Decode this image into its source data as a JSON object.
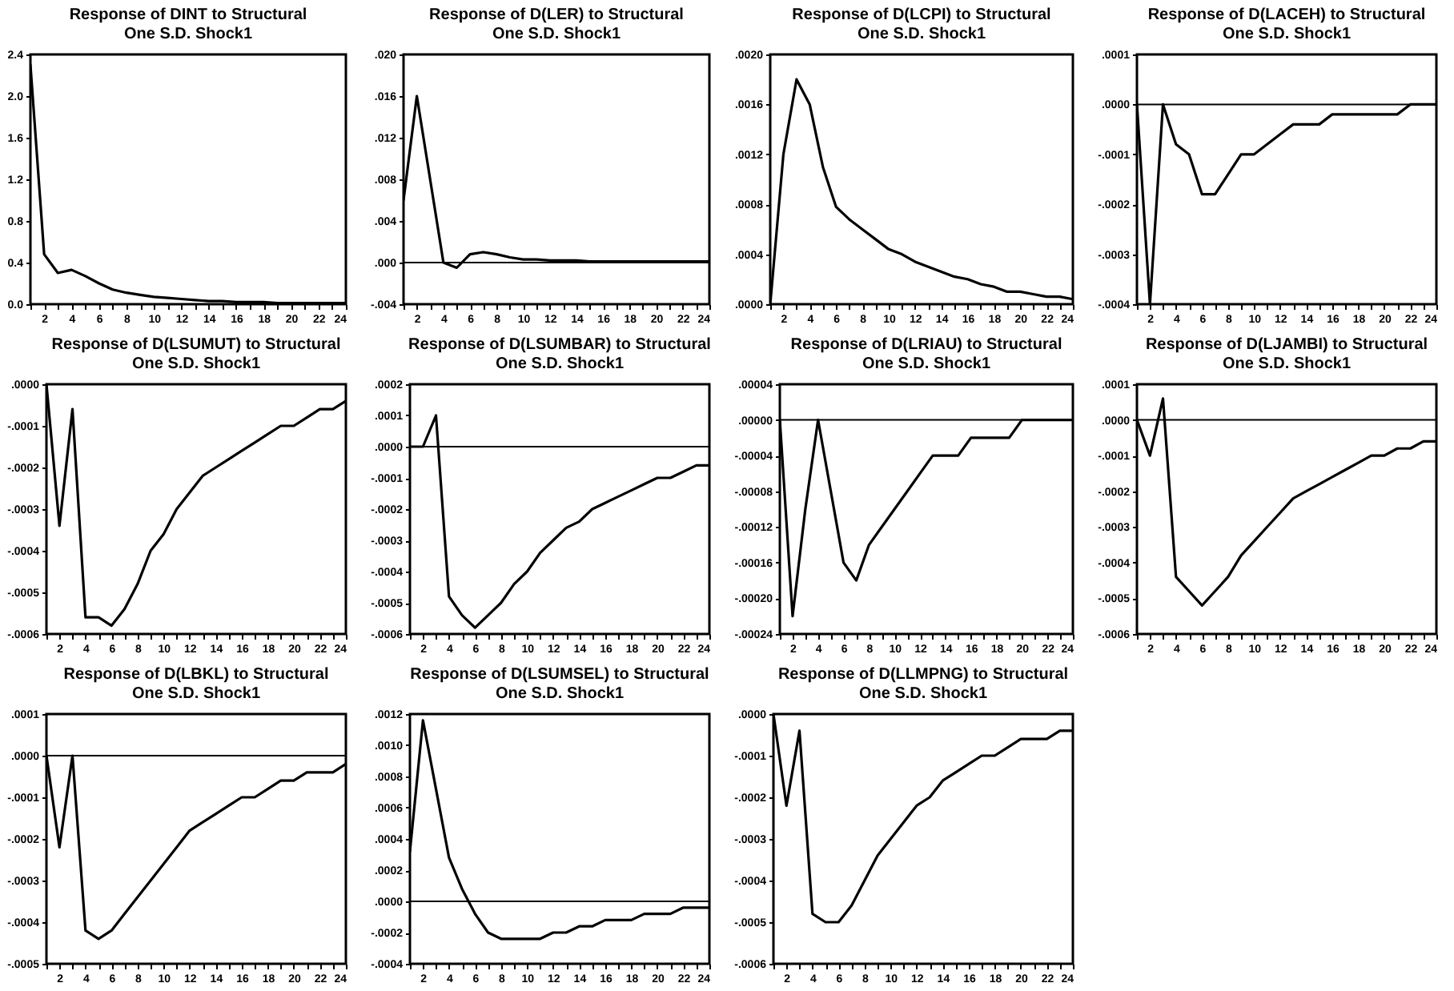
{
  "chart_data": [
    {
      "type": "line",
      "title": "Response of DINT to Structural\nOne S.D. Shock1",
      "color": "#000000",
      "x": [
        1,
        2,
        3,
        4,
        5,
        6,
        7,
        8,
        9,
        10,
        11,
        12,
        13,
        14,
        15,
        16,
        17,
        18,
        19,
        20,
        21,
        22,
        23,
        24
      ],
      "values": [
        2.3,
        0.48,
        0.3,
        0.33,
        0.27,
        0.2,
        0.14,
        0.11,
        0.09,
        0.07,
        0.06,
        0.05,
        0.04,
        0.03,
        0.03,
        0.02,
        0.02,
        0.02,
        0.01,
        0.01,
        0.01,
        0.01,
        0.01,
        0.01
      ],
      "xlim": [
        1,
        24
      ],
      "xticks": [
        {
          "value": 1,
          "label": null
        },
        2,
        {
          "value": 3,
          "label": null
        },
        4,
        {
          "value": 5,
          "label": null
        },
        6,
        {
          "value": 7,
          "label": null
        },
        8,
        {
          "value": 9,
          "label": null
        },
        10,
        {
          "value": 11,
          "label": null
        },
        12,
        {
          "value": 13,
          "label": null
        },
        14,
        {
          "value": 15,
          "label": null
        },
        16,
        {
          "value": 17,
          "label": null
        },
        18,
        {
          "value": 19,
          "label": null
        },
        20,
        {
          "value": 21,
          "label": null
        },
        22,
        {
          "value": 23,
          "label": null
        },
        24
      ],
      "ylim": [
        0,
        2.4
      ],
      "yticks": [
        {
          "value": 0,
          "label": "0.0"
        },
        {
          "value": 0.4,
          "label": "0.4"
        },
        {
          "value": 0.8,
          "label": "0.8"
        },
        {
          "value": 1.2,
          "label": "1.2"
        },
        {
          "value": 1.6,
          "label": "1.6"
        },
        {
          "value": 2.0,
          "label": "2.0"
        },
        {
          "value": 2.4,
          "label": "2.4"
        }
      ]
    },
    {
      "type": "line",
      "title": "Response of D(LER) to Structural\nOne S.D. Shock1",
      "color": "#000000",
      "x": [
        1,
        2,
        3,
        4,
        5,
        6,
        7,
        8,
        9,
        10,
        11,
        12,
        13,
        14,
        15,
        16,
        17,
        18,
        19,
        20,
        21,
        22,
        23,
        24
      ],
      "values": [
        0.006,
        0.016,
        0.008,
        0.0,
        -0.0005,
        0.0008,
        0.001,
        0.0008,
        0.0005,
        0.0003,
        0.0003,
        0.0002,
        0.0002,
        0.0002,
        0.0001,
        0.0001,
        0.0001,
        0.0001,
        0.0001,
        0.0001,
        0.0001,
        0.0001,
        0.0001,
        0.0001
      ],
      "xlim": [
        1,
        24
      ],
      "xticks": [
        {
          "value": 1,
          "label": null
        },
        2,
        {
          "value": 3,
          "label": null
        },
        4,
        {
          "value": 5,
          "label": null
        },
        6,
        {
          "value": 7,
          "label": null
        },
        8,
        {
          "value": 9,
          "label": null
        },
        10,
        {
          "value": 11,
          "label": null
        },
        12,
        {
          "value": 13,
          "label": null
        },
        14,
        {
          "value": 15,
          "label": null
        },
        16,
        {
          "value": 17,
          "label": null
        },
        18,
        {
          "value": 19,
          "label": null
        },
        20,
        {
          "value": 21,
          "label": null
        },
        22,
        {
          "value": 23,
          "label": null
        },
        24
      ],
      "ylim": [
        -0.004,
        0.02
      ],
      "yticks": [
        {
          "value": -0.004,
          "label": "-.004"
        },
        {
          "value": 0,
          "label": ".000"
        },
        {
          "value": 0.004,
          "label": ".004"
        },
        {
          "value": 0.008,
          "label": ".008"
        },
        {
          "value": 0.012,
          "label": ".012"
        },
        {
          "value": 0.016,
          "label": ".016"
        },
        {
          "value": 0.02,
          "label": ".020"
        }
      ],
      "ref_lines": [
        {
          "axis": "y",
          "value": 0
        }
      ]
    },
    {
      "type": "line",
      "title": "Response of D(LCPI) to Structural\nOne S.D. Shock1",
      "color": "#000000",
      "x": [
        1,
        2,
        3,
        4,
        5,
        6,
        7,
        8,
        9,
        10,
        11,
        12,
        13,
        14,
        15,
        16,
        17,
        18,
        19,
        20,
        21,
        22,
        23,
        24
      ],
      "values": [
        0.0,
        0.0012,
        0.0018,
        0.0016,
        0.0011,
        0.00078,
        0.00068,
        0.0006,
        0.00052,
        0.00044,
        0.0004,
        0.00034,
        0.0003,
        0.00026,
        0.00022,
        0.0002,
        0.00016,
        0.00014,
        0.0001,
        0.0001,
        8e-05,
        6e-05,
        6e-05,
        4e-05
      ],
      "xlim": [
        1,
        24
      ],
      "xticks": [
        {
          "value": 1,
          "label": null
        },
        2,
        {
          "value": 3,
          "label": null
        },
        4,
        {
          "value": 5,
          "label": null
        },
        6,
        {
          "value": 7,
          "label": null
        },
        8,
        {
          "value": 9,
          "label": null
        },
        10,
        {
          "value": 11,
          "label": null
        },
        12,
        {
          "value": 13,
          "label": null
        },
        14,
        {
          "value": 15,
          "label": null
        },
        16,
        {
          "value": 17,
          "label": null
        },
        18,
        {
          "value": 19,
          "label": null
        },
        20,
        {
          "value": 21,
          "label": null
        },
        22,
        {
          "value": 23,
          "label": null
        },
        24
      ],
      "ylim": [
        0,
        0.002
      ],
      "yticks": [
        {
          "value": 0,
          "label": ".0000"
        },
        {
          "value": 0.0004,
          "label": ".0004"
        },
        {
          "value": 0.0008,
          "label": ".0008"
        },
        {
          "value": 0.0012,
          "label": ".0012"
        },
        {
          "value": 0.0016,
          "label": ".0016"
        },
        {
          "value": 0.002,
          "label": ".0020"
        }
      ]
    },
    {
      "type": "line",
      "title": "Response of D(LACEH) to Structural\nOne S.D. Shock1",
      "color": "#000000",
      "x": [
        1,
        2,
        3,
        4,
        5,
        6,
        7,
        8,
        9,
        10,
        11,
        12,
        13,
        14,
        15,
        16,
        17,
        18,
        19,
        20,
        21,
        22,
        23,
        24
      ],
      "values": [
        0.0,
        -0.0004,
        0.0,
        -8e-05,
        -0.0001,
        -0.00018,
        -0.00018,
        -0.00014,
        -0.0001,
        -0.0001,
        -8e-05,
        -6e-05,
        -4e-05,
        -4e-05,
        -4e-05,
        -2e-05,
        -2e-05,
        -2e-05,
        -2e-05,
        -2e-05,
        -2e-05,
        0.0,
        0.0,
        0.0
      ],
      "xlim": [
        1,
        24
      ],
      "xticks": [
        {
          "value": 1,
          "label": null
        },
        2,
        {
          "value": 3,
          "label": null
        },
        4,
        {
          "value": 5,
          "label": null
        },
        6,
        {
          "value": 7,
          "label": null
        },
        8,
        {
          "value": 9,
          "label": null
        },
        10,
        {
          "value": 11,
          "label": null
        },
        12,
        {
          "value": 13,
          "label": null
        },
        14,
        {
          "value": 15,
          "label": null
        },
        16,
        {
          "value": 17,
          "label": null
        },
        18,
        {
          "value": 19,
          "label": null
        },
        20,
        {
          "value": 21,
          "label": null
        },
        22,
        {
          "value": 23,
          "label": null
        },
        24
      ],
      "ylim": [
        -0.0004,
        0.0001
      ],
      "yticks": [
        {
          "value": -0.0004,
          "label": "-.0004"
        },
        {
          "value": -0.0003,
          "label": "-.0003"
        },
        {
          "value": -0.0002,
          "label": "-.0002"
        },
        {
          "value": -0.0001,
          "label": "-.0001"
        },
        {
          "value": 0,
          "label": ".0000"
        },
        {
          "value": 0.0001,
          "label": ".0001"
        }
      ],
      "ref_lines": [
        {
          "axis": "y",
          "value": 0
        }
      ]
    },
    {
      "type": "line",
      "title": "Response of D(LSUMUT) to Structural\nOne S.D. Shock1",
      "color": "#000000",
      "x": [
        1,
        2,
        3,
        4,
        5,
        6,
        7,
        8,
        9,
        10,
        11,
        12,
        13,
        14,
        15,
        16,
        17,
        18,
        19,
        20,
        21,
        22,
        23,
        24
      ],
      "values": [
        0.0,
        -0.00034,
        -6e-05,
        -0.00056,
        -0.00056,
        -0.00058,
        -0.00054,
        -0.00048,
        -0.0004,
        -0.00036,
        -0.0003,
        -0.00026,
        -0.00022,
        -0.0002,
        -0.00018,
        -0.00016,
        -0.00014,
        -0.00012,
        -0.0001,
        -0.0001,
        -8e-05,
        -6e-05,
        -6e-05,
        -4e-05
      ],
      "xlim": [
        1,
        24
      ],
      "xticks": [
        {
          "value": 1,
          "label": null
        },
        2,
        {
          "value": 3,
          "label": null
        },
        4,
        {
          "value": 5,
          "label": null
        },
        6,
        {
          "value": 7,
          "label": null
        },
        8,
        {
          "value": 9,
          "label": null
        },
        10,
        {
          "value": 11,
          "label": null
        },
        12,
        {
          "value": 13,
          "label": null
        },
        14,
        {
          "value": 15,
          "label": null
        },
        16,
        {
          "value": 17,
          "label": null
        },
        18,
        {
          "value": 19,
          "label": null
        },
        20,
        {
          "value": 21,
          "label": null
        },
        22,
        {
          "value": 23,
          "label": null
        },
        24
      ],
      "ylim": [
        -0.0006,
        0
      ],
      "yticks": [
        {
          "value": -0.0006,
          "label": "-.0006"
        },
        {
          "value": -0.0005,
          "label": "-.0005"
        },
        {
          "value": -0.0004,
          "label": "-.0004"
        },
        {
          "value": -0.0003,
          "label": "-.0003"
        },
        {
          "value": -0.0002,
          "label": "-.0002"
        },
        {
          "value": -0.0001,
          "label": "-.0001"
        },
        {
          "value": 0,
          "label": ".0000"
        }
      ]
    },
    {
      "type": "line",
      "title": "Response of D(LSUMBAR) to Structural\nOne S.D. Shock1",
      "color": "#000000",
      "x": [
        1,
        2,
        3,
        4,
        5,
        6,
        7,
        8,
        9,
        10,
        11,
        12,
        13,
        14,
        15,
        16,
        17,
        18,
        19,
        20,
        21,
        22,
        23,
        24
      ],
      "values": [
        0.0,
        0.0,
        0.0001,
        -0.00048,
        -0.00054,
        -0.00058,
        -0.00054,
        -0.0005,
        -0.00044,
        -0.0004,
        -0.00034,
        -0.0003,
        -0.00026,
        -0.00024,
        -0.0002,
        -0.00018,
        -0.00016,
        -0.00014,
        -0.00012,
        -0.0001,
        -0.0001,
        -8e-05,
        -6e-05,
        -6e-05
      ],
      "xlim": [
        1,
        24
      ],
      "xticks": [
        {
          "value": 1,
          "label": null
        },
        2,
        {
          "value": 3,
          "label": null
        },
        4,
        {
          "value": 5,
          "label": null
        },
        6,
        {
          "value": 7,
          "label": null
        },
        8,
        {
          "value": 9,
          "label": null
        },
        10,
        {
          "value": 11,
          "label": null
        },
        12,
        {
          "value": 13,
          "label": null
        },
        14,
        {
          "value": 15,
          "label": null
        },
        16,
        {
          "value": 17,
          "label": null
        },
        18,
        {
          "value": 19,
          "label": null
        },
        20,
        {
          "value": 21,
          "label": null
        },
        22,
        {
          "value": 23,
          "label": null
        },
        24
      ],
      "ylim": [
        -0.0006,
        0.0002
      ],
      "yticks": [
        {
          "value": -0.0006,
          "label": "-.0006"
        },
        {
          "value": -0.0005,
          "label": "-.0005"
        },
        {
          "value": -0.0004,
          "label": "-.0004"
        },
        {
          "value": -0.0003,
          "label": "-.0003"
        },
        {
          "value": -0.0002,
          "label": "-.0002"
        },
        {
          "value": -0.0001,
          "label": "-.0001"
        },
        {
          "value": 0,
          "label": ".0000"
        },
        {
          "value": 0.0001,
          "label": ".0001"
        },
        {
          "value": 0.0002,
          "label": ".0002"
        }
      ],
      "ref_lines": [
        {
          "axis": "y",
          "value": 0
        }
      ]
    },
    {
      "type": "line",
      "title": "Response of D(LRIAU) to Structural\nOne S.D. Shock1",
      "color": "#000000",
      "x": [
        1,
        2,
        3,
        4,
        5,
        6,
        7,
        8,
        9,
        10,
        11,
        12,
        13,
        14,
        15,
        16,
        17,
        18,
        19,
        20,
        21,
        22,
        23,
        24
      ],
      "values": [
        0.0,
        -0.00022,
        -0.0001,
        0.0,
        -8e-05,
        -0.00016,
        -0.00018,
        -0.00014,
        -0.00012,
        -0.0001,
        -8e-05,
        -6e-05,
        -4e-05,
        -4e-05,
        -4e-05,
        -2e-05,
        -2e-05,
        -2e-05,
        -2e-05,
        0.0,
        0.0,
        0.0,
        0.0,
        0.0
      ],
      "xlim": [
        1,
        24
      ],
      "xticks": [
        {
          "value": 1,
          "label": null
        },
        2,
        {
          "value": 3,
          "label": null
        },
        4,
        {
          "value": 5,
          "label": null
        },
        6,
        {
          "value": 7,
          "label": null
        },
        8,
        {
          "value": 9,
          "label": null
        },
        10,
        {
          "value": 11,
          "label": null
        },
        12,
        {
          "value": 13,
          "label": null
        },
        14,
        {
          "value": 15,
          "label": null
        },
        16,
        {
          "value": 17,
          "label": null
        },
        18,
        {
          "value": 19,
          "label": null
        },
        20,
        {
          "value": 21,
          "label": null
        },
        22,
        {
          "value": 23,
          "label": null
        },
        24
      ],
      "ylim": [
        -0.00024,
        4e-05
      ],
      "yticks": [
        {
          "value": -0.00024,
          "label": "-.00024"
        },
        {
          "value": -0.0002,
          "label": "-.00020"
        },
        {
          "value": -0.00016,
          "label": "-.00016"
        },
        {
          "value": -0.00012,
          "label": "-.00012"
        },
        {
          "value": -8e-05,
          "label": "-.00008"
        },
        {
          "value": -4e-05,
          "label": "-.00004"
        },
        {
          "value": 0,
          "label": ".00000"
        },
        {
          "value": 4e-05,
          "label": ".00004"
        }
      ],
      "ref_lines": [
        {
          "axis": "y",
          "value": 0
        }
      ]
    },
    {
      "type": "line",
      "title": "Response of D(LJAMBI) to Structural\nOne S.D. Shock1",
      "color": "#000000",
      "x": [
        1,
        2,
        3,
        4,
        5,
        6,
        7,
        8,
        9,
        10,
        11,
        12,
        13,
        14,
        15,
        16,
        17,
        18,
        19,
        20,
        21,
        22,
        23,
        24
      ],
      "values": [
        0.0,
        -0.0001,
        6e-05,
        -0.00044,
        -0.00048,
        -0.00052,
        -0.00048,
        -0.00044,
        -0.00038,
        -0.00034,
        -0.0003,
        -0.00026,
        -0.00022,
        -0.0002,
        -0.00018,
        -0.00016,
        -0.00014,
        -0.00012,
        -0.0001,
        -0.0001,
        -8e-05,
        -8e-05,
        -6e-05,
        -6e-05
      ],
      "xlim": [
        1,
        24
      ],
      "xticks": [
        {
          "value": 1,
          "label": null
        },
        2,
        {
          "value": 3,
          "label": null
        },
        4,
        {
          "value": 5,
          "label": null
        },
        6,
        {
          "value": 7,
          "label": null
        },
        8,
        {
          "value": 9,
          "label": null
        },
        10,
        {
          "value": 11,
          "label": null
        },
        12,
        {
          "value": 13,
          "label": null
        },
        14,
        {
          "value": 15,
          "label": null
        },
        16,
        {
          "value": 17,
          "label": null
        },
        18,
        {
          "value": 19,
          "label": null
        },
        20,
        {
          "value": 21,
          "label": null
        },
        22,
        {
          "value": 23,
          "label": null
        },
        24
      ],
      "ylim": [
        -0.0006,
        0.0001
      ],
      "yticks": [
        {
          "value": -0.0006,
          "label": "-.0006"
        },
        {
          "value": -0.0005,
          "label": "-.0005"
        },
        {
          "value": -0.0004,
          "label": "-.0004"
        },
        {
          "value": -0.0003,
          "label": "-.0003"
        },
        {
          "value": -0.0002,
          "label": "-.0002"
        },
        {
          "value": -0.0001,
          "label": "-.0001"
        },
        {
          "value": 0,
          "label": ".0000"
        },
        {
          "value": 0.0001,
          "label": ".0001"
        }
      ],
      "ref_lines": [
        {
          "axis": "y",
          "value": 0
        }
      ]
    },
    {
      "type": "line",
      "title": "Response of D(LBKL) to Structural\nOne S.D. Shock1",
      "color": "#000000",
      "x": [
        1,
        2,
        3,
        4,
        5,
        6,
        7,
        8,
        9,
        10,
        11,
        12,
        13,
        14,
        15,
        16,
        17,
        18,
        19,
        20,
        21,
        22,
        23,
        24
      ],
      "values": [
        0.0,
        -0.00022,
        0.0,
        -0.00042,
        -0.00044,
        -0.00042,
        -0.00038,
        -0.00034,
        -0.0003,
        -0.00026,
        -0.00022,
        -0.00018,
        -0.00016,
        -0.00014,
        -0.00012,
        -0.0001,
        -0.0001,
        -8e-05,
        -6e-05,
        -6e-05,
        -4e-05,
        -4e-05,
        -4e-05,
        -2e-05
      ],
      "xlim": [
        1,
        24
      ],
      "xticks": [
        {
          "value": 1,
          "label": null
        },
        2,
        {
          "value": 3,
          "label": null
        },
        4,
        {
          "value": 5,
          "label": null
        },
        6,
        {
          "value": 7,
          "label": null
        },
        8,
        {
          "value": 9,
          "label": null
        },
        10,
        {
          "value": 11,
          "label": null
        },
        12,
        {
          "value": 13,
          "label": null
        },
        14,
        {
          "value": 15,
          "label": null
        },
        16,
        {
          "value": 17,
          "label": null
        },
        18,
        {
          "value": 19,
          "label": null
        },
        20,
        {
          "value": 21,
          "label": null
        },
        22,
        {
          "value": 23,
          "label": null
        },
        24
      ],
      "ylim": [
        -0.0005,
        0.0001
      ],
      "yticks": [
        {
          "value": -0.0005,
          "label": "-.0005"
        },
        {
          "value": -0.0004,
          "label": "-.0004"
        },
        {
          "value": -0.0003,
          "label": "-.0003"
        },
        {
          "value": -0.0002,
          "label": "-.0002"
        },
        {
          "value": -0.0001,
          "label": "-.0001"
        },
        {
          "value": 0,
          "label": ".0000"
        },
        {
          "value": 0.0001,
          "label": ".0001"
        }
      ],
      "ref_lines": [
        {
          "axis": "y",
          "value": 0
        }
      ]
    },
    {
      "type": "line",
      "title": "Response of D(LSUMSEL) to Structural\nOne S.D. Shock1",
      "color": "#000000",
      "x": [
        1,
        2,
        3,
        4,
        5,
        6,
        7,
        8,
        9,
        10,
        11,
        12,
        13,
        14,
        15,
        16,
        17,
        18,
        19,
        20,
        21,
        22,
        23,
        24
      ],
      "values": [
        0.00032,
        0.00116,
        0.00072,
        0.00028,
        8e-05,
        -8e-05,
        -0.0002,
        -0.00024,
        -0.00024,
        -0.00024,
        -0.00024,
        -0.0002,
        -0.0002,
        -0.00016,
        -0.00016,
        -0.00012,
        -0.00012,
        -0.00012,
        -8e-05,
        -8e-05,
        -8e-05,
        -4e-05,
        -4e-05,
        -4e-05
      ],
      "xlim": [
        1,
        24
      ],
      "xticks": [
        {
          "value": 1,
          "label": null
        },
        2,
        {
          "value": 3,
          "label": null
        },
        4,
        {
          "value": 5,
          "label": null
        },
        6,
        {
          "value": 7,
          "label": null
        },
        8,
        {
          "value": 9,
          "label": null
        },
        10,
        {
          "value": 11,
          "label": null
        },
        12,
        {
          "value": 13,
          "label": null
        },
        14,
        {
          "value": 15,
          "label": null
        },
        16,
        {
          "value": 17,
          "label": null
        },
        18,
        {
          "value": 19,
          "label": null
        },
        20,
        {
          "value": 21,
          "label": null
        },
        22,
        {
          "value": 23,
          "label": null
        },
        24
      ],
      "ylim": [
        -0.0004,
        0.0012
      ],
      "yticks": [
        {
          "value": -0.0004,
          "label": "-.0004"
        },
        {
          "value": -0.0002,
          "label": "-.0002"
        },
        {
          "value": 0,
          "label": ".0000"
        },
        {
          "value": 0.0002,
          "label": ".0002"
        },
        {
          "value": 0.0004,
          "label": ".0004"
        },
        {
          "value": 0.0006,
          "label": ".0006"
        },
        {
          "value": 0.0008,
          "label": ".0008"
        },
        {
          "value": 0.001,
          "label": ".0010"
        },
        {
          "value": 0.0012,
          "label": ".0012"
        }
      ],
      "ref_lines": [
        {
          "axis": "y",
          "value": 0
        }
      ]
    },
    {
      "type": "line",
      "title": "Response of D(LLMPNG) to Structural\nOne S.D. Shock1",
      "color": "#000000",
      "x": [
        1,
        2,
        3,
        4,
        5,
        6,
        7,
        8,
        9,
        10,
        11,
        12,
        13,
        14,
        15,
        16,
        17,
        18,
        19,
        20,
        21,
        22,
        23,
        24
      ],
      "values": [
        0.0,
        -0.00022,
        -4e-05,
        -0.00048,
        -0.0005,
        -0.0005,
        -0.00046,
        -0.0004,
        -0.00034,
        -0.0003,
        -0.00026,
        -0.00022,
        -0.0002,
        -0.00016,
        -0.00014,
        -0.00012,
        -0.0001,
        -0.0001,
        -8e-05,
        -6e-05,
        -6e-05,
        -6e-05,
        -4e-05,
        -4e-05
      ],
      "xlim": [
        1,
        24
      ],
      "xticks": [
        {
          "value": 1,
          "label": null
        },
        2,
        {
          "value": 3,
          "label": null
        },
        4,
        {
          "value": 5,
          "label": null
        },
        6,
        {
          "value": 7,
          "label": null
        },
        8,
        {
          "value": 9,
          "label": null
        },
        10,
        {
          "value": 11,
          "label": null
        },
        12,
        {
          "value": 13,
          "label": null
        },
        14,
        {
          "value": 15,
          "label": null
        },
        16,
        {
          "value": 17,
          "label": null
        },
        18,
        {
          "value": 19,
          "label": null
        },
        20,
        {
          "value": 21,
          "label": null
        },
        22,
        {
          "value": 23,
          "label": null
        },
        24
      ],
      "ylim": [
        -0.0006,
        0
      ],
      "yticks": [
        {
          "value": -0.0006,
          "label": "-.0006"
        },
        {
          "value": -0.0005,
          "label": "-.0005"
        },
        {
          "value": -0.0004,
          "label": "-.0004"
        },
        {
          "value": -0.0003,
          "label": "-.0003"
        },
        {
          "value": -0.0002,
          "label": "-.0002"
        },
        {
          "value": -0.0001,
          "label": "-.0001"
        },
        {
          "value": 0,
          "label": ".0000"
        }
      ]
    }
  ]
}
